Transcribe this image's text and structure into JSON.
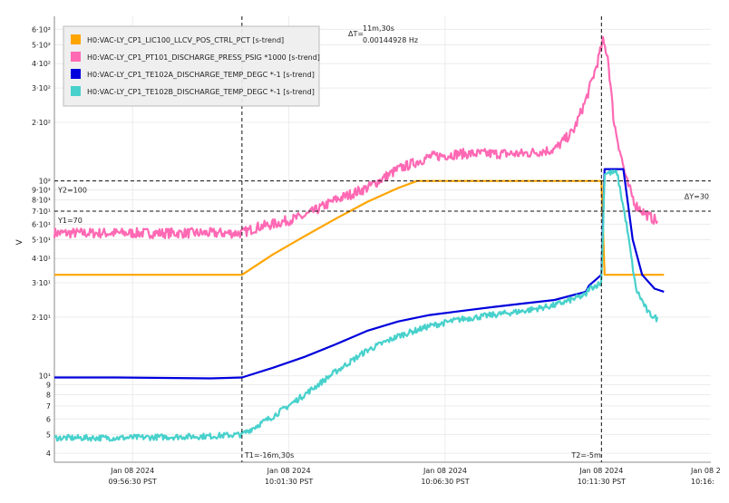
{
  "chart_data": {
    "type": "line",
    "ylabel": "V",
    "y_scale": "log",
    "ylim": [
      3.6,
      700
    ],
    "grid": true,
    "legend_placement": "top-left",
    "y_ticks": [
      {
        "value": 4,
        "label": "4"
      },
      {
        "value": 5,
        "label": "5"
      },
      {
        "value": 6,
        "label": "6"
      },
      {
        "value": 7,
        "label": "7"
      },
      {
        "value": 8,
        "label": "8"
      },
      {
        "value": 9,
        "label": "9"
      },
      {
        "value": 10,
        "label": "10¹"
      },
      {
        "value": 20,
        "label": "2·10¹"
      },
      {
        "value": 30,
        "label": "3·10¹"
      },
      {
        "value": 40,
        "label": "4·10¹"
      },
      {
        "value": 50,
        "label": "5·10¹"
      },
      {
        "value": 60,
        "label": "6·10¹"
      },
      {
        "value": 70,
        "label": "7·10¹"
      },
      {
        "value": 80,
        "label": "8·10¹"
      },
      {
        "value": 90,
        "label": "9·10¹"
      },
      {
        "value": 100,
        "label": "10²"
      },
      {
        "value": 200,
        "label": "2·10²"
      },
      {
        "value": 300,
        "label": "3·10²"
      },
      {
        "value": 400,
        "label": "4·10²"
      },
      {
        "value": 500,
        "label": "5·10²"
      },
      {
        "value": 600,
        "label": "6·10²"
      }
    ],
    "x_range_min": [
      -1,
      20
    ],
    "x_ticks": [
      {
        "min": 1.5,
        "date": "Jan 08 2024",
        "time": "09:56:30 PST"
      },
      {
        "min": 6.5,
        "date": "Jan 08 2024",
        "time": "10:01:30 PST"
      },
      {
        "min": 11.5,
        "date": "Jan 08 2024",
        "time": "10:06:30 PST"
      },
      {
        "min": 16.5,
        "date": "Jan 08 2024",
        "time": "10:11:30 PST"
      },
      {
        "min": 21.5,
        "date": "Jan 08 2",
        "time": "10:16:"
      }
    ],
    "series": [
      {
        "name": "H0:VAC-LY_CP1_LIC100_LLCV_POS_CTRL_PCT [s-trend]",
        "color": "#FFA500",
        "points": [
          [
            -1,
            33
          ],
          [
            5,
            33
          ],
          [
            6,
            42
          ],
          [
            7,
            52
          ],
          [
            8,
            64
          ],
          [
            9,
            78
          ],
          [
            10,
            92
          ],
          [
            10.6,
            100
          ],
          [
            16.5,
            100
          ],
          [
            16.6,
            33
          ],
          [
            18.5,
            33
          ]
        ]
      },
      {
        "name": "H0:VAC-LY_CP1_PT101_DISCHARGE_PRESS_PSIG *1000 [s-trend]",
        "color": "#FF69B4",
        "points": [
          [
            -1,
            54
          ],
          [
            5,
            54
          ],
          [
            5.5,
            58
          ],
          [
            6,
            60
          ],
          [
            7,
            66
          ],
          [
            8,
            80
          ],
          [
            9,
            92
          ],
          [
            10,
            115
          ],
          [
            11,
            133
          ],
          [
            12,
            138
          ],
          [
            13,
            138
          ],
          [
            14,
            138
          ],
          [
            15,
            145
          ],
          [
            15.6,
            180
          ],
          [
            16,
            260
          ],
          [
            16.3,
            370
          ],
          [
            16.55,
            520
          ],
          [
            16.7,
            440
          ],
          [
            16.9,
            200
          ],
          [
            17.3,
            100
          ],
          [
            17.6,
            75
          ],
          [
            18,
            66
          ],
          [
            18.3,
            62
          ]
        ]
      },
      {
        "name": "H0:VAC-LY_CP1_TE102A_DISCHARGE_TEMP_DEGC *-1 [s-trend]",
        "color": "#0000DD",
        "points": [
          [
            -1,
            9.8
          ],
          [
            1,
            9.8
          ],
          [
            4,
            9.7
          ],
          [
            5,
            9.8
          ],
          [
            6,
            11
          ],
          [
            7,
            12.5
          ],
          [
            8,
            14.5
          ],
          [
            9,
            17
          ],
          [
            10,
            19
          ],
          [
            11,
            20.5
          ],
          [
            12,
            21.5
          ],
          [
            13,
            22.5
          ],
          [
            14,
            23.5
          ],
          [
            15,
            24.5
          ],
          [
            16,
            27
          ],
          [
            16.1,
            29
          ],
          [
            16.5,
            33
          ],
          [
            16.6,
            115
          ],
          [
            17.2,
            115
          ],
          [
            17.5,
            50
          ],
          [
            17.8,
            33
          ],
          [
            18.2,
            28
          ],
          [
            18.5,
            27
          ]
        ]
      },
      {
        "name": "H0:VAC-LY_CP1_TE102B_DISCHARGE_TEMP_DEGC *-1 [s-trend]",
        "color": "#48D1CC",
        "points": [
          [
            -1,
            4.8
          ],
          [
            1,
            4.8
          ],
          [
            4,
            4.9
          ],
          [
            5,
            5.0
          ],
          [
            6,
            6.2
          ],
          [
            7,
            8
          ],
          [
            8,
            10.5
          ],
          [
            9,
            13.5
          ],
          [
            10,
            16
          ],
          [
            11,
            18
          ],
          [
            12,
            19.5
          ],
          [
            13,
            20.5
          ],
          [
            14,
            21.5
          ],
          [
            15,
            23
          ],
          [
            16,
            26
          ],
          [
            16.1,
            28
          ],
          [
            16.5,
            30
          ],
          [
            16.6,
            110
          ],
          [
            17,
            110
          ],
          [
            17.3,
            60
          ],
          [
            17.6,
            28
          ],
          [
            18,
            21
          ],
          [
            18.3,
            19.5
          ]
        ]
      }
    ],
    "cursors": {
      "t1_label": "T1=-16m,30s",
      "t2_label": "T2=-5m",
      "t1_min": 5,
      "t2_min": 16.5,
      "y1_label": "Y1=70",
      "y2_label": "Y2=100",
      "y1_value": 70,
      "y2_value": 100,
      "delta_t_prefix": "ΔT=",
      "delta_t_value": "11m,30s",
      "delta_t_freq": "0.00144928 Hz",
      "delta_y_label": "ΔY=30"
    }
  }
}
